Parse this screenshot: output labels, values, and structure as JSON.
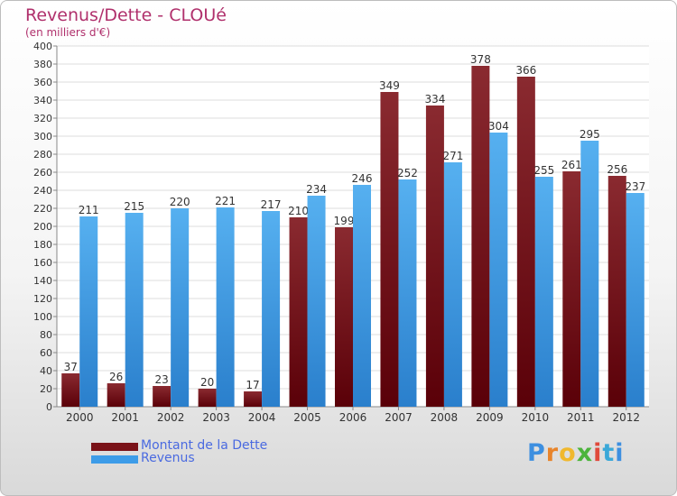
{
  "title": "Revenus/Dette - CLOUé",
  "subtitle": "(en milliers d'€)",
  "logo": {
    "letters": [
      "P",
      "r",
      "o",
      "x",
      "i",
      "t",
      "i"
    ]
  },
  "colors": {
    "debt": "#7a1218",
    "revenue": "#3d9ce8",
    "title": "#b0306c",
    "legend_text": "#4a6ae0"
  },
  "chart_data": {
    "type": "bar",
    "categories": [
      "2000",
      "2001",
      "2002",
      "2003",
      "2004",
      "2005",
      "2006",
      "2007",
      "2008",
      "2009",
      "2010",
      "2011",
      "2012"
    ],
    "series": [
      {
        "name": "Montant de la Dette",
        "values": [
          37,
          26,
          23,
          20,
          17,
          210,
          199,
          349,
          334,
          378,
          366,
          261,
          256
        ]
      },
      {
        "name": "Revenus",
        "values": [
          211,
          215,
          220,
          221,
          217,
          234,
          246,
          252,
          271,
          304,
          255,
          295,
          237
        ]
      }
    ],
    "ylim": [
      0,
      400
    ],
    "ytick_step": 20,
    "grid": true,
    "legend_position": "bottom-left"
  }
}
